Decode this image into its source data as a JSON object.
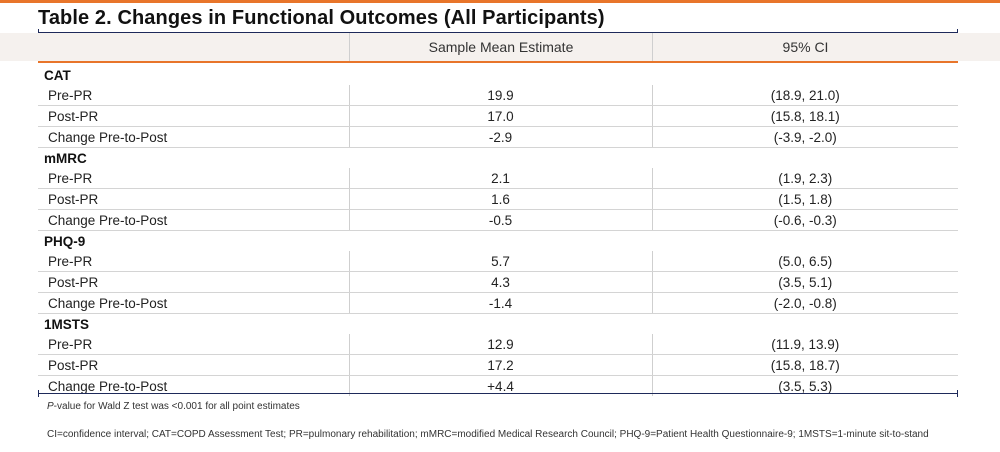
{
  "title": "Table 2. Changes in Functional Outcomes (All Participants)",
  "header": {
    "col_label": "",
    "col_mean": "Sample Mean Estimate",
    "col_ci": "95% CI"
  },
  "sections": [
    {
      "name": "CAT",
      "rows": [
        {
          "label": "Pre-PR",
          "mean": "19.9",
          "ci": "(18.9, 21.0)"
        },
        {
          "label": "Post-PR",
          "mean": "17.0",
          "ci": "(15.8, 18.1)"
        },
        {
          "label": "Change Pre-to-Post",
          "mean": "-2.9",
          "ci": "(-3.9, -2.0)"
        }
      ]
    },
    {
      "name": "mMRC",
      "rows": [
        {
          "label": "Pre-PR",
          "mean": "2.1",
          "ci": "(1.9, 2.3)"
        },
        {
          "label": "Post-PR",
          "mean": "1.6",
          "ci": "(1.5, 1.8)"
        },
        {
          "label": "Change Pre-to-Post",
          "mean": "-0.5",
          "ci": "(-0.6, -0.3)"
        }
      ]
    },
    {
      "name": "PHQ-9",
      "rows": [
        {
          "label": "Pre-PR",
          "mean": "5.7",
          "ci": "(5.0, 6.5)"
        },
        {
          "label": "Post-PR",
          "mean": "4.3",
          "ci": "(3.5, 5.1)"
        },
        {
          "label": "Change Pre-to-Post",
          "mean": "-1.4",
          "ci": "(-2.0, -0.8)"
        }
      ]
    },
    {
      "name": "1MSTS",
      "rows": [
        {
          "label": "Pre-PR",
          "mean": "12.9",
          "ci": "(11.9, 13.9)"
        },
        {
          "label": "Post-PR",
          "mean": "17.2",
          "ci": "(15.8, 18.7)"
        },
        {
          "label": "Change Pre-to-Post",
          "mean": "+4.4",
          "ci": "(3.5, 5.3)"
        }
      ]
    }
  ],
  "footnotes": {
    "pvalue_italic": "P",
    "pvalue_rest": "-value for Wald Z test was <0.001 for all point estimates",
    "abbreviations": "CI=confidence interval; CAT=COPD Assessment Test; PR=pulmonary rehabilitation; mMRC=modified Medical Research Council; PHQ-9=Patient Health Questionnaire-9; 1MSTS=1-minute sit-to-stand"
  },
  "colors": {
    "accent_orange": "#e8752a",
    "rule_navy": "#1e2a5a",
    "header_band": "#f5f1ee"
  }
}
